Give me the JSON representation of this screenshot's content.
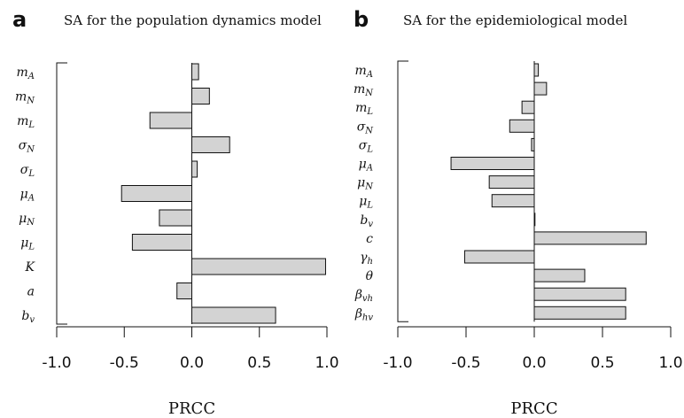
{
  "chart_data": [
    {
      "type": "bar",
      "orientation": "horizontal",
      "letter": "a",
      "title": "SA for the population dynamics model",
      "xlabel": "PRCC",
      "xlim": [
        -1.0,
        1.0
      ],
      "xticks": [
        "-1.0",
        "-0.5",
        "0.0",
        "0.5",
        "1.0"
      ],
      "xtick_values": [
        -1.0,
        -0.5,
        0.0,
        0.5,
        1.0
      ],
      "categories": [
        {
          "base": "m",
          "sub": "A"
        },
        {
          "base": "m",
          "sub": "N"
        },
        {
          "base": "m",
          "sub": "L"
        },
        {
          "base": "σ",
          "sub": "N"
        },
        {
          "base": "σ",
          "sub": "L"
        },
        {
          "base": "μ",
          "sub": "A"
        },
        {
          "base": "μ",
          "sub": "N"
        },
        {
          "base": "μ",
          "sub": "L"
        },
        {
          "base": "K",
          "sub": ""
        },
        {
          "base": "a",
          "sub": ""
        },
        {
          "base": "b",
          "sub": "v"
        }
      ],
      "values": [
        0.05,
        0.13,
        -0.31,
        0.28,
        0.04,
        -0.52,
        -0.24,
        -0.44,
        0.99,
        -0.11,
        0.62
      ]
    },
    {
      "type": "bar",
      "orientation": "horizontal",
      "letter": "b",
      "title": "SA for the epidemiological model",
      "xlabel": "PRCC",
      "xlim": [
        -1.0,
        1.0
      ],
      "xticks": [
        "-1.0",
        "-0.5",
        "0.0",
        "0.5",
        "1.0"
      ],
      "xtick_values": [
        -1.0,
        -0.5,
        0.0,
        0.5,
        1.0
      ],
      "categories": [
        {
          "base": "m",
          "sub": "A"
        },
        {
          "base": "m",
          "sub": "N"
        },
        {
          "base": "m",
          "sub": "L"
        },
        {
          "base": "σ",
          "sub": "N"
        },
        {
          "base": "σ",
          "sub": "L"
        },
        {
          "base": "μ",
          "sub": "A"
        },
        {
          "base": "μ",
          "sub": "N"
        },
        {
          "base": "μ",
          "sub": "L"
        },
        {
          "base": "b",
          "sub": "v"
        },
        {
          "base": "c",
          "sub": ""
        },
        {
          "base": "γ",
          "sub": "h"
        },
        {
          "base": "θ",
          "sub": ""
        },
        {
          "base": "β",
          "sub": "vh"
        },
        {
          "base": "β",
          "sub": "hv"
        }
      ],
      "values": [
        0.03,
        0.09,
        -0.09,
        -0.18,
        -0.02,
        -0.61,
        -0.33,
        -0.31,
        0.005,
        0.82,
        -0.51,
        0.37,
        0.67,
        0.67
      ]
    }
  ],
  "colors": {
    "bar_fill": "#d3d3d3",
    "stroke": "#111111"
  }
}
